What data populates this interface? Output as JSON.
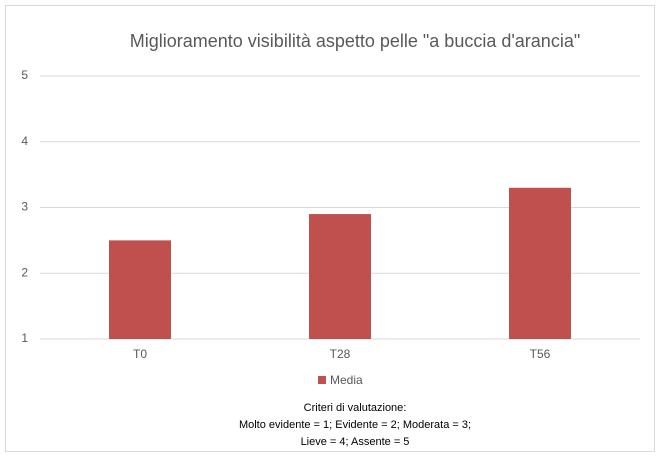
{
  "chart_data": {
    "type": "bar",
    "title": "Miglioramento visibilità aspetto pelle \"a buccia d'arancia\"",
    "categories": [
      "T0",
      "T28",
      "T56"
    ],
    "series": [
      {
        "name": "Media",
        "color": "#c0504d",
        "values": [
          2.5,
          2.9,
          3.3
        ]
      }
    ],
    "ylim": [
      1,
      5
    ],
    "yticks": [
      1,
      2,
      3,
      4,
      5
    ],
    "grid": true,
    "legend": "bottom",
    "annotations": [
      "Criteri di valutazione:",
      "Molto evidente = 1; Evidente = 2;  Moderata = 3;",
      "Lieve = 4; Assente = 5"
    ]
  }
}
